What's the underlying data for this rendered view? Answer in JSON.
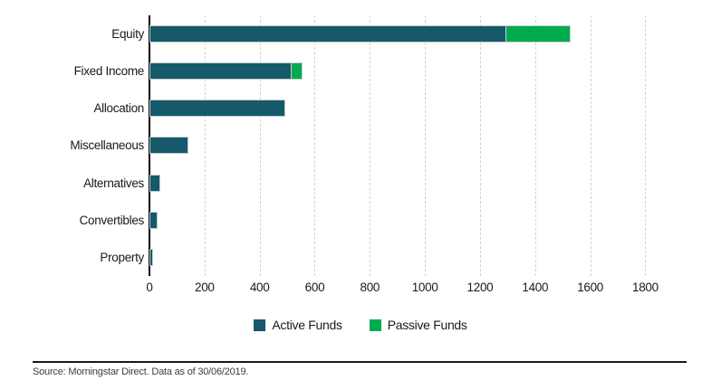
{
  "chart_data": {
    "type": "bar",
    "orientation": "horizontal",
    "stacked": true,
    "categories": [
      "Equity",
      "Fixed Income",
      "Allocation",
      "Miscellaneous",
      "Alternatives",
      "Convertibles",
      "Property"
    ],
    "series": [
      {
        "name": "Active Funds",
        "color": "#15596b",
        "values": [
          1290,
          510,
          485,
          135,
          33,
          22,
          8
        ]
      },
      {
        "name": "Passive Funds",
        "color": "#00ab4e",
        "values": [
          230,
          35,
          0,
          0,
          0,
          0,
          0
        ]
      }
    ],
    "xticks": [
      0,
      200,
      400,
      600,
      800,
      1000,
      1200,
      1400,
      1600,
      1800
    ],
    "xlim": [
      0,
      2055
    ],
    "grid": "vertical-dashed",
    "legend_position": "bottom",
    "title": "",
    "xlabel": "",
    "ylabel": ""
  },
  "colors": {
    "active": "#15596b",
    "passive": "#00ab4e",
    "gridline": "#d4d4d4",
    "axis": "#000000",
    "text": "#1a1a1a"
  },
  "footer": {
    "source_text": "Source: Morningstar Direct. Data as of 30/06/2019."
  }
}
